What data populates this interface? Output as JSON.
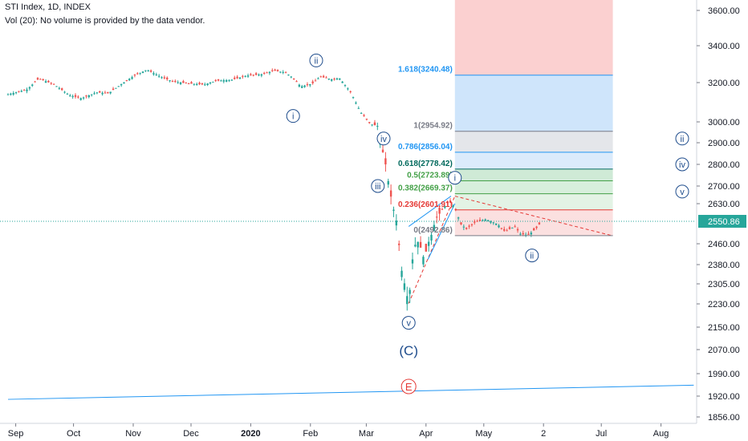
{
  "header": {
    "title": "STI Index, 1D, INDEX",
    "volume_note": "Vol (20): No volume is provided by the data vendor."
  },
  "colors": {
    "up": "#26a69a",
    "down": "#ef5350",
    "fib_blue": "#2196f3",
    "fib_green": "#43a047",
    "fib_red": "#e53935",
    "wave_label": "#1e4c8c",
    "price_badge": "#26a69a"
  },
  "chart_data": {
    "type": "candlestick",
    "title": "STI Index, 1D, INDEX",
    "ylim": [
      1840,
      3680
    ],
    "y_ticks": [
      1856,
      1920,
      1990,
      2070,
      2150,
      2230,
      2305,
      2380,
      2460,
      2550.86,
      2630,
      2700,
      2800,
      2900,
      3000,
      3200,
      3400,
      3600
    ],
    "y_tick_labels": [
      "1856.00",
      "1920.00",
      "1990.00",
      "2070.00",
      "2150.00",
      "2230.00",
      "2305.00",
      "2380.00",
      "2460.00",
      "2550.86",
      "2630.00",
      "2700.00",
      "2800.00",
      "2900.00",
      "3000.00",
      "3200.00",
      "3400.00",
      "3600.00"
    ],
    "x_axis_labels": [
      {
        "label": "Sep",
        "day": 4
      },
      {
        "label": "Oct",
        "day": 34
      },
      {
        "label": "Nov",
        "day": 65
      },
      {
        "label": "Dec",
        "day": 95
      },
      {
        "label": "2020",
        "day": 126
      },
      {
        "label": "Feb",
        "day": 157
      },
      {
        "label": "Mar",
        "day": 186
      },
      {
        "label": "Apr",
        "day": 217
      },
      {
        "label": "May",
        "day": 247
      },
      {
        "label": "2",
        "day": 278
      },
      {
        "label": "Jul",
        "day": 308
      },
      {
        "label": "Aug",
        "day": 339
      }
    ],
    "last_price": 2550.86,
    "price_anchors": [
      [
        0,
        3140
      ],
      [
        10,
        3165
      ],
      [
        16,
        3222
      ],
      [
        24,
        3190
      ],
      [
        32,
        3135
      ],
      [
        38,
        3120
      ],
      [
        46,
        3150
      ],
      [
        52,
        3145
      ],
      [
        60,
        3200
      ],
      [
        66,
        3240
      ],
      [
        72,
        3270
      ],
      [
        80,
        3228
      ],
      [
        86,
        3205
      ],
      [
        94,
        3195
      ],
      [
        102,
        3190
      ],
      [
        108,
        3210
      ],
      [
        116,
        3215
      ],
      [
        124,
        3238
      ],
      [
        132,
        3245
      ],
      [
        138,
        3265
      ],
      [
        144,
        3255
      ],
      [
        148,
        3225
      ],
      [
        152,
        3180
      ],
      [
        158,
        3195
      ],
      [
        162,
        3232
      ],
      [
        168,
        3218
      ],
      [
        172,
        3225
      ],
      [
        178,
        3150
      ],
      [
        183,
        3050
      ],
      [
        188,
        2990
      ],
      [
        192,
        2980
      ],
      [
        194,
        2880
      ],
      [
        196,
        2800
      ],
      [
        198,
        2690
      ],
      [
        200,
        2610
      ],
      [
        202,
        2540
      ],
      [
        204,
        2370
      ],
      [
        206,
        2300
      ],
      [
        208,
        2232
      ],
      [
        210,
        2400
      ],
      [
        212,
        2480
      ],
      [
        214,
        2450
      ],
      [
        216,
        2400
      ],
      [
        218,
        2460
      ],
      [
        220,
        2500
      ],
      [
        222,
        2560
      ],
      [
        226,
        2610
      ],
      [
        229,
        2640
      ],
      [
        232,
        2610
      ],
      [
        235,
        2540
      ],
      [
        238,
        2520
      ],
      [
        242,
        2545
      ],
      [
        248,
        2560
      ],
      [
        254,
        2540
      ],
      [
        258,
        2510
      ],
      [
        263,
        2530
      ],
      [
        266,
        2500
      ],
      [
        270,
        2495
      ],
      [
        274,
        2520
      ],
      [
        277,
        2551
      ]
    ],
    "fib_levels": [
      {
        "ratio_label": "1.618(3240.48)",
        "value": 3240.48,
        "color": "#2196f3"
      },
      {
        "ratio_label": "1(2954.92)",
        "value": 2954.92,
        "color": "#787b86"
      },
      {
        "ratio_label": "0.786(2856.04)",
        "value": 2856.04,
        "color": "#2196f3"
      },
      {
        "ratio_label": "0.618(2778.42)",
        "value": 2778.42,
        "color": "#00695c"
      },
      {
        "ratio_label": "0.5(2723.89)",
        "value": 2723.89,
        "color": "#43a047"
      },
      {
        "ratio_label": "0.382(2669.37)",
        "value": 2669.37,
        "color": "#43a047"
      },
      {
        "ratio_label": "0.236(2601.91)",
        "value": 2601.91,
        "color": "#e53935"
      },
      {
        "ratio_label": "0(2492.86)",
        "value": 2492.86,
        "color": "#787b86"
      }
    ],
    "fib_zones": [
      {
        "from": 3240.48,
        "to": 3680,
        "color": "#fbd0d0"
      },
      {
        "from": 2954.92,
        "to": 3240.48,
        "color": "#cfe5fb"
      },
      {
        "from": 2856.04,
        "to": 2954.92,
        "color": "#e4e6ea"
      },
      {
        "from": 2778.42,
        "to": 2856.04,
        "color": "#dbebfb"
      },
      {
        "from": 2723.89,
        "to": 2778.42,
        "color": "#cfead6"
      },
      {
        "from": 2669.37,
        "to": 2723.89,
        "color": "#d7efdc"
      },
      {
        "from": 2601.91,
        "to": 2669.37,
        "color": "#e3f3e5"
      },
      {
        "from": 2492.86,
        "to": 2601.91,
        "color": "#fbe0e0"
      }
    ],
    "fib_x_range": [
      232,
      314
    ],
    "wave_labels": [
      {
        "text": "ii",
        "day": 160,
        "value": 3320
      },
      {
        "text": "i",
        "day": 148,
        "value": 3030
      },
      {
        "text": "iv",
        "day": 195,
        "value": 2920
      },
      {
        "text": "iii",
        "day": 192,
        "value": 2700
      },
      {
        "text": "v",
        "day": 208,
        "value": 2165
      },
      {
        "text": "i",
        "day": 232,
        "value": 2738
      },
      {
        "text": "ii",
        "day": 272,
        "value": 2415
      },
      {
        "text": "ii",
        "day": 350,
        "value": 2920
      },
      {
        "text": "iv",
        "day": 350,
        "value": 2800
      },
      {
        "text": "v",
        "day": 350,
        "value": 2678
      }
    ],
    "large_labels": [
      {
        "text": "(C)",
        "day": 208,
        "value": 2068,
        "color": "#1e4c8c"
      },
      {
        "text": "E",
        "day": 208,
        "value": 1950,
        "color": "#e53935",
        "circled": true
      }
    ],
    "trendlines": [
      {
        "from": [
          0,
          1910
        ],
        "to": [
          356,
          1954
        ],
        "color": "#2196f3",
        "dashed": false
      },
      {
        "from": [
          208,
          2232
        ],
        "to": [
          232,
          2660
        ],
        "color": "#e53935",
        "dashed": true
      },
      {
        "from": [
          232,
          2660
        ],
        "to": [
          314,
          2492
        ],
        "color": "#e53935",
        "dashed": true
      },
      {
        "from": [
          218,
          2400
        ],
        "to": [
          232,
          2630
        ],
        "color": "#2196f3",
        "dashed": false
      },
      {
        "from": [
          208,
          2530
        ],
        "to": [
          230,
          2660
        ],
        "color": "#2196f3",
        "dashed": false
      }
    ]
  }
}
